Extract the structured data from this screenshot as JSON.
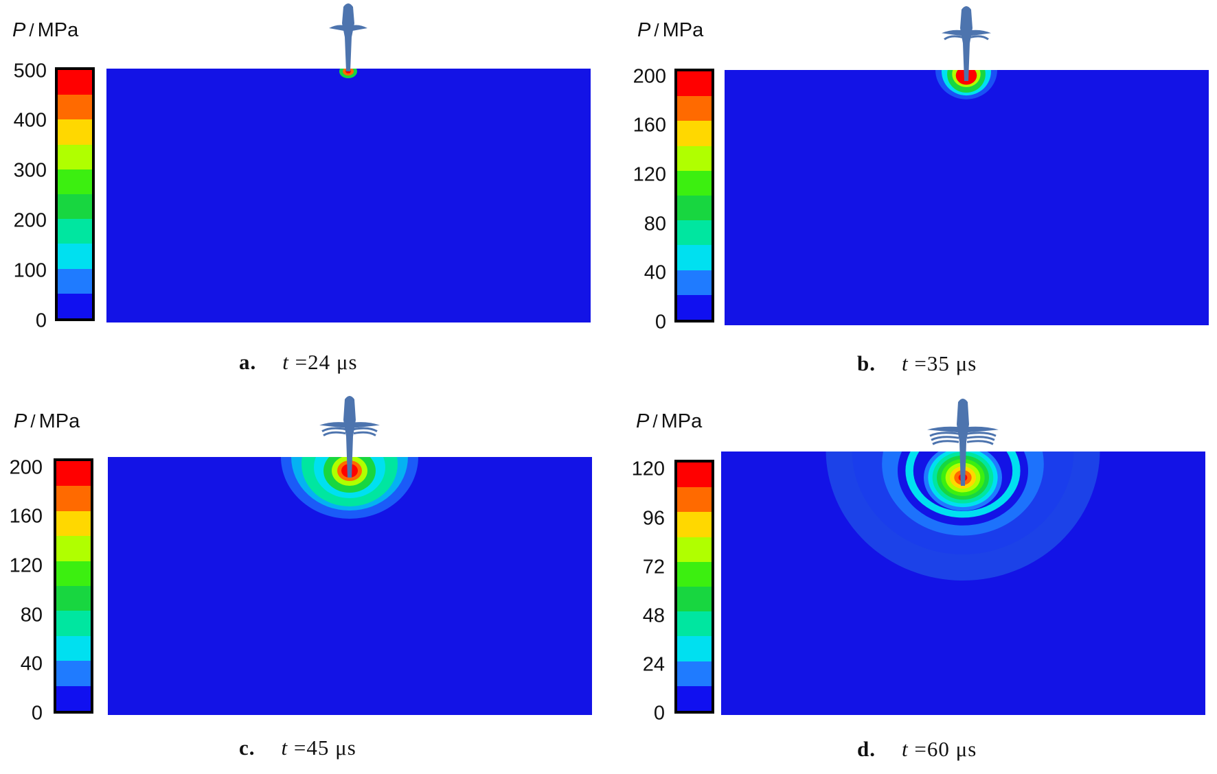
{
  "panels": [
    {
      "id": "a",
      "unit_symbol": "P",
      "unit_text": "MPa",
      "ticks": [
        "500",
        "400",
        "300",
        "200",
        "100",
        "0"
      ],
      "caption_letter": "a.",
      "caption_var": "t",
      "caption_value": "=24 μs",
      "wave_extent": 0.05
    },
    {
      "id": "b",
      "unit_symbol": "P",
      "unit_text": "MPa",
      "ticks": [
        "200",
        "160",
        "120",
        "80",
        "40",
        "0"
      ],
      "caption_letter": "b.",
      "caption_var": "t",
      "caption_value": "=35 μs",
      "wave_extent": 0.25
    },
    {
      "id": "c",
      "unit_symbol": "P",
      "unit_text": "MPa",
      "ticks": [
        "200",
        "160",
        "120",
        "80",
        "40",
        "0"
      ],
      "caption_letter": "c.",
      "caption_var": "t",
      "caption_value": "=45 μs",
      "wave_extent": 0.55
    },
    {
      "id": "d",
      "unit_symbol": "P",
      "unit_text": "MPa",
      "ticks": [
        "120",
        "96",
        "72",
        "48",
        "24",
        "0"
      ],
      "caption_letter": "d.",
      "caption_var": "t",
      "caption_value": "=60 μs",
      "wave_extent": 1.0
    }
  ],
  "colormap": [
    "#ff0000",
    "#ff6a00",
    "#ffd800",
    "#b0ff00",
    "#3cef10",
    "#18d640",
    "#00e6a0",
    "#00e0f0",
    "#1f7bff",
    "#1010f0"
  ],
  "background_color": "#1313e6",
  "projectile_color": "#4d74ae"
}
